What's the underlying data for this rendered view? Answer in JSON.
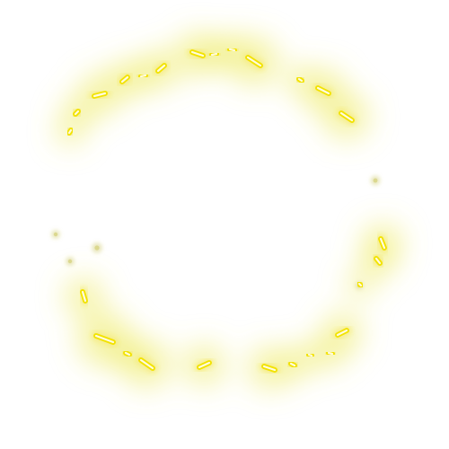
{
  "effect": {
    "name": "glowing-sparkle-ring",
    "colors": {
      "background": "#ffffff",
      "spark_core": "#fffbe0",
      "spark_edge": "#f2e300",
      "halo": "#ecea5a",
      "dot": "#d9d68a"
    }
  }
}
